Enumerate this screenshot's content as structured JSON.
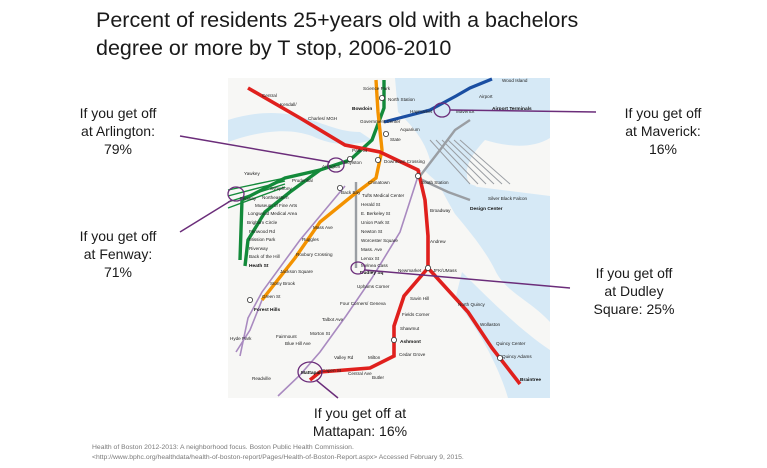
{
  "title": {
    "line1": "Percent of residents 25+years old with a bachelors",
    "line2": "degree or more by T stop, 2006-2010"
  },
  "callouts": {
    "arlington": {
      "line1": "If you get off",
      "line2": "at Arlington:",
      "line3": "79%",
      "percent": 79
    },
    "fenway": {
      "line1": "If you get off",
      "line2": "at Fenway:",
      "line3": "71%",
      "percent": 71
    },
    "maverick": {
      "line1": "If you get off",
      "line2": "at Maverick:",
      "line3": "16%",
      "percent": 16
    },
    "dudley": {
      "line1": "If you get off",
      "line2": "at Dudley",
      "line3": "Square: 25%",
      "percent": 25
    },
    "mattapan": {
      "line1": "If you get off at",
      "line2": "Mattapan: 16%",
      "percent": 16
    }
  },
  "source": {
    "line1": "Health of Boston 2012-2013: A neighborhood focus. Boston Public Health Commission.",
    "line2": "<http://www.bphc.org/healthdata/health-of-boston-report/Pages/Health-of-Boston-Report.aspx> Accessed February 9, 2015."
  },
  "map": {
    "colors": {
      "red_line": "#e0201d",
      "green_line": "#138a3a",
      "orange_line": "#f39200",
      "blue_line": "#1a4ea2",
      "silver_line": "#9a9ea3",
      "commuter_rail": "#a98ac0",
      "water": "#d6e9f6",
      "highlight": "#6b2d7a"
    },
    "stations": {
      "central": "Central",
      "kendall": "Kendall/",
      "science_park": "Science Park",
      "north_station": "North Station",
      "haymarket": "Haymarket",
      "bowdoin": "Bowdoin",
      "government_center": "Government Center",
      "aquarium": "Aquarium",
      "maverick": "Maverick",
      "airport": "Airport",
      "wood_island": "Wood Island",
      "charles": "Charles/ MGH",
      "park_st": "Park St",
      "downtown_crossing": "Downtown Crossing",
      "state": "State",
      "boylston": "Boylston",
      "arlington": "Arlington",
      "chinatown": "Chinatown",
      "tufts": "Tufts Medical Center",
      "south_station": "South Station",
      "prudential": "Prudential",
      "symphony": "Symphony",
      "northeastern": "Northeastern",
      "museum": "Museum of Fine Arts",
      "longwood_medical": "Longwood Medical Area",
      "brigham": "Brigham Circle",
      "fenwood": "Fenwood Rd",
      "mission_park": "Mission Park",
      "riverway": "Riverway",
      "back_of_hill": "Back of the Hill",
      "heath": "Heath St",
      "fenway": "Fenway",
      "back_bay": "Back Bay",
      "mass_ave": "Mass Ave",
      "ruggles": "Ruggles",
      "roxbury": "Roxbury Crossing",
      "jackson": "Jackson Square",
      "stony_brook": "Stony Brook",
      "green_st": "Green St",
      "forest_hills": "Forest Hills",
      "herald": "Herald St",
      "e_berkeley": "E. Berkeley St",
      "union_park": "Union Park St",
      "newton": "Newton St",
      "worcester": "Worcester Square",
      "mass_ave_sl": "Mass. Ave",
      "lenox": "Lenox St",
      "melnea": "Melnea Cass",
      "dudley": "Dudley Sq",
      "broadway": "Broadway",
      "andrew": "Andrew",
      "jfk": "JFK/UMass",
      "savin": "Savin Hill",
      "fields": "Fields Corner",
      "shawmut": "Shawmut",
      "ashmont": "Ashmont",
      "cedar": "Cedar Grove",
      "butler": "Butler",
      "milton": "Milton",
      "central_ave": "Central Ave",
      "valley": "Valley Rd",
      "capen": "Capen St",
      "mattapan": "Mattapan",
      "north_quincy": "North Quincy",
      "wollaston": "Wollaston",
      "quincy_center": "Quincy Center",
      "quincy_adams": "Quincy Adams",
      "braintree": "Braintree",
      "design_center": "Design Center",
      "silver_black": "Silver Black Falcon",
      "airport_terminals": "Airport Terminals",
      "fairmount": "Fairmount",
      "blue_hill": "Blue Hill Ave",
      "morton": "Morton St",
      "talbot": "Talbot Ave",
      "four_corners": "Four Corners/ Geneva",
      "uphams": "Uphams Corner",
      "newmarket": "Newmarket",
      "hyde_park": "Hyde Park",
      "readville": "Readville",
      "yawkey": "Yawkey"
    }
  }
}
